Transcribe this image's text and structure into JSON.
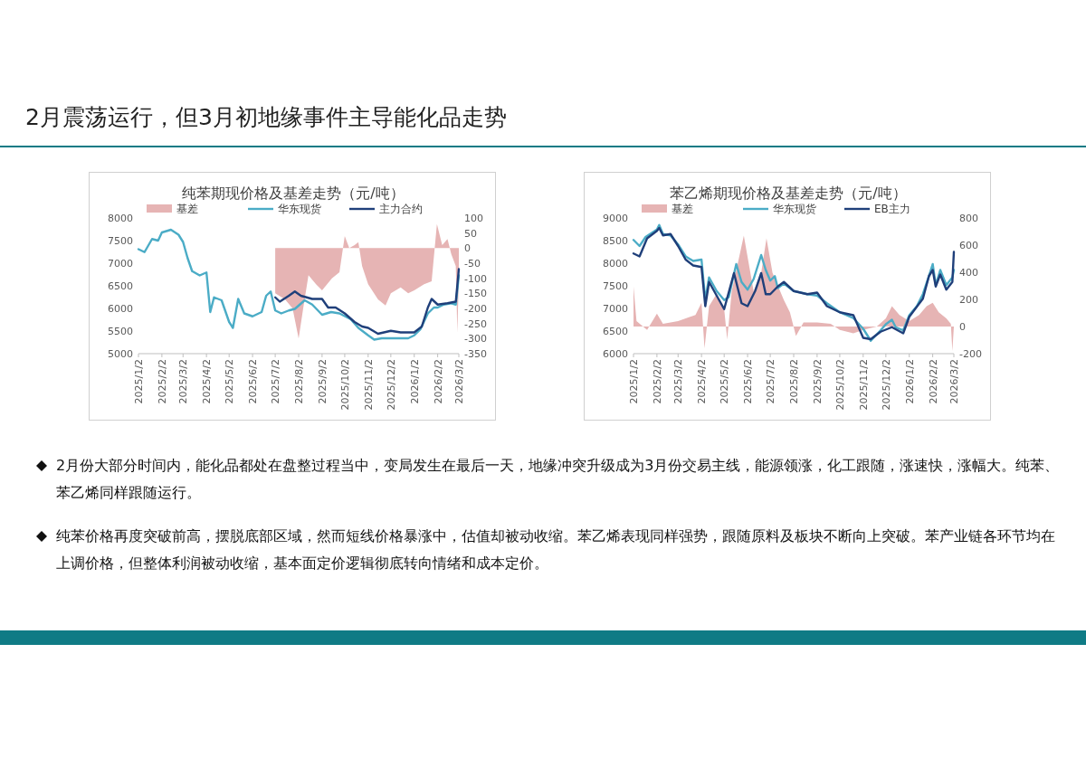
{
  "chart_data": [
    {
      "type": "line",
      "title": "纯苯期现价格及基差走势（元/吨）",
      "legend": "top",
      "line_style": "solid",
      "xlim": [
        "2025-01-02",
        "2026-03-02"
      ],
      "xticks": [
        {
          "value": "2025-01-02",
          "label": "2025/1/2"
        },
        {
          "value": "2025-02-02",
          "label": "2025/2/2"
        },
        {
          "value": "2025-03-02",
          "label": "2025/3/2"
        },
        {
          "value": "2025-04-02",
          "label": "2025/4/2"
        },
        {
          "value": "2025-05-02",
          "label": "2025/5/2"
        },
        {
          "value": "2025-06-02",
          "label": "2025/6/2"
        },
        {
          "value": "2025-07-02",
          "label": "2025/7/2"
        },
        {
          "value": "2025-08-02",
          "label": "2025/8/2"
        },
        {
          "value": "2025-09-02",
          "label": "2025/9/2"
        },
        {
          "value": "2025-10-02",
          "label": "2025/10/2"
        },
        {
          "value": "2025-11-02",
          "label": "2025/11/2"
        },
        {
          "value": "2025-12-02",
          "label": "2025/12/2"
        },
        {
          "value": "2026-01-02",
          "label": "2026/1/2"
        },
        {
          "value": "2026-02-02",
          "label": "2026/2/2"
        },
        {
          "value": "2026-03-02",
          "label": "2026/3/2"
        }
      ],
      "ylim": [
        5000,
        8000
      ],
      "yticks": [
        5000,
        5500,
        6000,
        6500,
        7000,
        7500,
        8000
      ],
      "y2lim": [
        -350,
        100
      ],
      "y2ticks": [
        -350,
        -300,
        -250,
        -200,
        -150,
        -100,
        -50,
        0,
        50,
        100
      ],
      "series": [
        {
          "name": "基差",
          "type": "area",
          "axis": "y2",
          "color": "#e6b4b4",
          "x": [
            "2025-07-02",
            "2025-07-15",
            "2025-07-25",
            "2025-08-02",
            "2025-08-08",
            "2025-08-15",
            "2025-08-25",
            "2025-09-02",
            "2025-09-15",
            "2025-09-25",
            "2025-10-02",
            "2025-10-08",
            "2025-10-15",
            "2025-10-20",
            "2025-10-25",
            "2025-11-02",
            "2025-11-15",
            "2025-11-25",
            "2025-12-02",
            "2025-12-15",
            "2025-12-25",
            "2026-01-02",
            "2026-01-15",
            "2026-01-25",
            "2026-02-01",
            "2026-02-08",
            "2026-02-15",
            "2026-02-20",
            "2026-02-26",
            "2026-02-28",
            "2026-03-02"
          ],
          "values": [
            -150,
            -170,
            -200,
            -300,
            -200,
            -90,
            -120,
            -140,
            -100,
            -80,
            40,
            0,
            10,
            20,
            -60,
            -120,
            -170,
            -190,
            -150,
            -130,
            -150,
            -140,
            -120,
            -110,
            80,
            10,
            30,
            -20,
            -60,
            -280,
            -100
          ]
        },
        {
          "name": "华东现货",
          "type": "line",
          "color": "#4bacc6",
          "x": [
            "2025-01-02",
            "2025-01-10",
            "2025-01-20",
            "2025-01-28",
            "2025-02-02",
            "2025-02-14",
            "2025-02-24",
            "2025-03-02",
            "2025-03-08",
            "2025-03-14",
            "2025-03-24",
            "2025-04-02",
            "2025-04-07",
            "2025-04-12",
            "2025-04-22",
            "2025-05-02",
            "2025-05-07",
            "2025-05-14",
            "2025-05-22",
            "2025-06-02",
            "2025-06-14",
            "2025-06-20",
            "2025-06-26",
            "2025-07-02",
            "2025-07-10",
            "2025-07-20",
            "2025-07-28",
            "2025-08-10",
            "2025-08-20",
            "2025-09-02",
            "2025-09-14",
            "2025-09-25",
            "2025-10-10",
            "2025-10-20",
            "2025-11-02",
            "2025-11-10",
            "2025-11-20",
            "2025-12-02",
            "2025-12-15",
            "2025-12-25",
            "2026-01-02",
            "2026-01-10",
            "2026-01-20",
            "2026-01-28",
            "2026-02-02",
            "2026-02-10",
            "2026-02-20",
            "2026-02-26",
            "2026-03-02"
          ],
          "values": [
            7310,
            7245,
            7535,
            7500,
            7680,
            7740,
            7630,
            7470,
            7115,
            6825,
            6730,
            6795,
            5920,
            6245,
            6180,
            5700,
            5570,
            6210,
            5890,
            5825,
            5920,
            6280,
            6375,
            5955,
            5890,
            5955,
            5990,
            6180,
            6085,
            5860,
            5920,
            5890,
            5760,
            5570,
            5405,
            5310,
            5340,
            5340,
            5340,
            5340,
            5405,
            5535,
            5890,
            6020,
            6020,
            6085,
            6115,
            6085,
            6730
          ]
        },
        {
          "name": "主力合约",
          "type": "line",
          "color": "#1f3f7a",
          "x": [
            "2025-07-02",
            "2025-07-08",
            "2025-07-20",
            "2025-07-28",
            "2025-08-05",
            "2025-08-20",
            "2025-09-02",
            "2025-09-10",
            "2025-09-20",
            "2025-10-02",
            "2025-10-15",
            "2025-10-25",
            "2025-11-02",
            "2025-11-15",
            "2025-12-02",
            "2025-12-15",
            "2026-01-02",
            "2026-01-12",
            "2026-01-20",
            "2026-01-25",
            "2026-02-02",
            "2026-02-15",
            "2026-02-26",
            "2026-03-02"
          ],
          "values": [
            6245,
            6150,
            6280,
            6375,
            6280,
            6210,
            6210,
            6020,
            6020,
            5890,
            5700,
            5600,
            5570,
            5440,
            5505,
            5470,
            5470,
            5600,
            6020,
            6210,
            6085,
            6115,
            6150,
            6870
          ]
        }
      ]
    },
    {
      "type": "line",
      "title": "苯乙烯期现价格及基差走势（元/吨）",
      "legend": "top",
      "line_style": "solid",
      "xlim": [
        "2025-01-02",
        "2026-03-02"
      ],
      "xticks": [
        {
          "value": "2025-01-02",
          "label": "2025/1/2"
        },
        {
          "value": "2025-02-02",
          "label": "2025/2/2"
        },
        {
          "value": "2025-03-02",
          "label": "2025/3/2"
        },
        {
          "value": "2025-04-02",
          "label": "2025/4/2"
        },
        {
          "value": "2025-05-02",
          "label": "2025/5/2"
        },
        {
          "value": "2025-06-02",
          "label": "2025/6/2"
        },
        {
          "value": "2025-07-02",
          "label": "2025/7/2"
        },
        {
          "value": "2025-08-02",
          "label": "2025/8/2"
        },
        {
          "value": "2025-09-02",
          "label": "2025/9/2"
        },
        {
          "value": "2025-10-02",
          "label": "2025/10/2"
        },
        {
          "value": "2025-11-02",
          "label": "2025/11/2"
        },
        {
          "value": "2025-12-02",
          "label": "2025/12/2"
        },
        {
          "value": "2026-01-02",
          "label": "2026/1/2"
        },
        {
          "value": "2026-02-02",
          "label": "2026/2/2"
        },
        {
          "value": "2026-03-02",
          "label": "2026/3/2"
        }
      ],
      "ylim": [
        6000,
        9000
      ],
      "yticks": [
        6000,
        6500,
        7000,
        7500,
        8000,
        8500,
        9000
      ],
      "y2lim": [
        -200,
        800
      ],
      "y2ticks": [
        -200,
        0,
        200,
        400,
        600,
        800
      ],
      "series": [
        {
          "name": "基差",
          "type": "area",
          "axis": "y2",
          "color": "#e6b4b4",
          "x": [
            "2025-01-02",
            "2025-01-06",
            "2025-01-20",
            "2025-02-02",
            "2025-02-10",
            "2025-03-02",
            "2025-03-25",
            "2025-04-02",
            "2025-04-06",
            "2025-04-12",
            "2025-04-22",
            "2025-05-02",
            "2025-05-06",
            "2025-05-12",
            "2025-05-28",
            "2025-06-10",
            "2025-06-20",
            "2025-06-27",
            "2025-07-05",
            "2025-07-20",
            "2025-07-28",
            "2025-08-05",
            "2025-08-15",
            "2025-09-02",
            "2025-09-20",
            "2025-10-02",
            "2025-10-20",
            "2025-11-02",
            "2025-11-20",
            "2025-12-02",
            "2025-12-10",
            "2025-12-20",
            "2026-01-02",
            "2026-01-15",
            "2026-01-25",
            "2026-02-02",
            "2026-02-10",
            "2026-02-20",
            "2026-02-26",
            "2026-02-28",
            "2026-03-02"
          ],
          "values": [
            295,
            40,
            -25,
            95,
            20,
            40,
            85,
            175,
            -160,
            150,
            240,
            130,
            -95,
            260,
            670,
            260,
            395,
            650,
            395,
            195,
            105,
            -70,
            30,
            30,
            20,
            -25,
            -50,
            -25,
            0,
            60,
            150,
            85,
            40,
            85,
            150,
            175,
            105,
            60,
            20,
            -180,
            0
          ]
        },
        {
          "name": "华东现货",
          "type": "line",
          "color": "#4bacc6",
          "x": [
            "2025-01-02",
            "2025-01-10",
            "2025-01-18",
            "2025-02-02",
            "2025-02-05",
            "2025-02-10",
            "2025-02-20",
            "2025-03-02",
            "2025-03-12",
            "2025-03-22",
            "2025-04-02",
            "2025-04-07",
            "2025-04-12",
            "2025-04-22",
            "2025-05-02",
            "2025-05-08",
            "2025-05-18",
            "2025-05-25",
            "2025-06-02",
            "2025-06-10",
            "2025-06-20",
            "2025-06-26",
            "2025-07-02",
            "2025-07-08",
            "2025-07-12",
            "2025-07-20",
            "2025-08-02",
            "2025-08-20",
            "2025-09-02",
            "2025-09-15",
            "2025-10-02",
            "2025-10-20",
            "2025-11-02",
            "2025-11-12",
            "2025-11-25",
            "2025-12-02",
            "2025-12-10",
            "2025-12-15",
            "2025-12-25",
            "2026-01-02",
            "2026-01-12",
            "2026-01-20",
            "2026-01-28",
            "2026-02-02",
            "2026-02-06",
            "2026-02-12",
            "2026-02-20",
            "2026-02-28",
            "2026-03-02"
          ],
          "values": [
            8515,
            8380,
            8580,
            8745,
            8845,
            8645,
            8615,
            8415,
            8150,
            8050,
            8080,
            7185,
            7685,
            7385,
            7185,
            7250,
            7980,
            7585,
            7415,
            7650,
            8180,
            7850,
            7615,
            7715,
            7450,
            7550,
            7385,
            7315,
            7285,
            7115,
            6915,
            6785,
            6550,
            6285,
            6515,
            6650,
            6750,
            6585,
            6515,
            6850,
            7050,
            7315,
            7715,
            7980,
            7515,
            7850,
            7515,
            7685,
            7850
          ]
        },
        {
          "name": "EB主力",
          "type": "line",
          "color": "#1f3f7a",
          "x": [
            "2025-01-02",
            "2025-01-10",
            "2025-01-20",
            "2025-02-02",
            "2025-02-05",
            "2025-02-10",
            "2025-02-20",
            "2025-03-02",
            "2025-03-12",
            "2025-03-22",
            "2025-04-02",
            "2025-04-07",
            "2025-04-12",
            "2025-04-22",
            "2025-05-02",
            "2025-05-15",
            "2025-05-25",
            "2025-06-02",
            "2025-06-12",
            "2025-06-20",
            "2025-06-26",
            "2025-07-02",
            "2025-07-12",
            "2025-07-20",
            "2025-08-02",
            "2025-08-20",
            "2025-09-02",
            "2025-09-15",
            "2025-10-02",
            "2025-10-20",
            "2025-11-02",
            "2025-11-12",
            "2025-11-25",
            "2025-12-10",
            "2025-12-25",
            "2026-01-02",
            "2026-01-20",
            "2026-01-28",
            "2026-02-02",
            "2026-02-06",
            "2026-02-12",
            "2026-02-20",
            "2026-02-28",
            "2026-03-02"
          ],
          "values": [
            8215,
            8150,
            8550,
            8715,
            8780,
            8615,
            8645,
            8380,
            8080,
            7950,
            7915,
            7050,
            7585,
            7285,
            6985,
            7780,
            7115,
            7050,
            7385,
            7780,
            7315,
            7315,
            7485,
            7585,
            7385,
            7315,
            7350,
            7050,
            6915,
            6850,
            6350,
            6320,
            6485,
            6585,
            6450,
            6815,
            7215,
            7715,
            7850,
            7485,
            7750,
            7415,
            7585,
            8250
          ]
        }
      ]
    },
    {
      "type": "other",
      "title": "2月震荡运行，但3月初地缘事件主导能化品走势",
      "annotations": [
        "2月份大部分时间内，能化品都处在盘整过程当中，变局发生在最后一天，地缘冲突升级成为3月份交易主线，能源领涨，化工跟随，涨速快，涨幅大。纯苯、苯乙烯同样跟随运行。",
        "纯苯价格再度突破前高，摆脱底部区域，然而短线价格暴涨中，估值却被动收缩。苯乙烯表现同样强势，跟随原料及板块不断向上突破。苯产业链各环节均在上调价格，但整体利润被动收缩，基本面定价逻辑彻底转向情绪和成本定价。"
      ]
    }
  ]
}
